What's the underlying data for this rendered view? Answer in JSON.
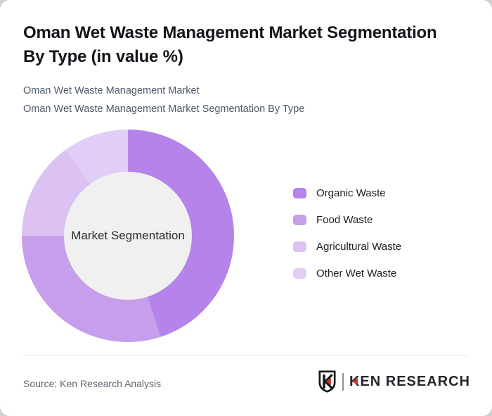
{
  "page": {
    "background_color": "#d0d0d0",
    "card_color": "#ffffff"
  },
  "header": {
    "title_lines": [
      "Oman Wet Waste Management Market Segmentation",
      "By Type (in value %)"
    ],
    "subtitle_lines": [
      "Oman Wet Waste Management Market",
      "Oman Wet Waste Management Market Segmentation By Type"
    ]
  },
  "chart_data": {
    "type": "pie",
    "donut": true,
    "title": "Oman Wet Waste Management Market Segmentation By Type (in value %)",
    "categories": [
      "Organic Waste",
      "Food Waste",
      "Agricultural Waste",
      "Other Wet Waste"
    ],
    "values": [
      45,
      30,
      15,
      10
    ],
    "colors": [
      "#b583e9",
      "#c69eec",
      "#dbc2f3",
      "#e2cdf7"
    ],
    "start_angle_deg": 0,
    "center_label": "Market Segmentation",
    "hole_color": "#f0f0f1",
    "legend_position": "right"
  },
  "footer": {
    "source_label": "Source: Ken Research Analysis",
    "logo": {
      "brand_first_letter": "K",
      "brand_rest": "EN RESEARCH",
      "accent_color": "#c8322b",
      "ink_color": "#26262c"
    }
  }
}
